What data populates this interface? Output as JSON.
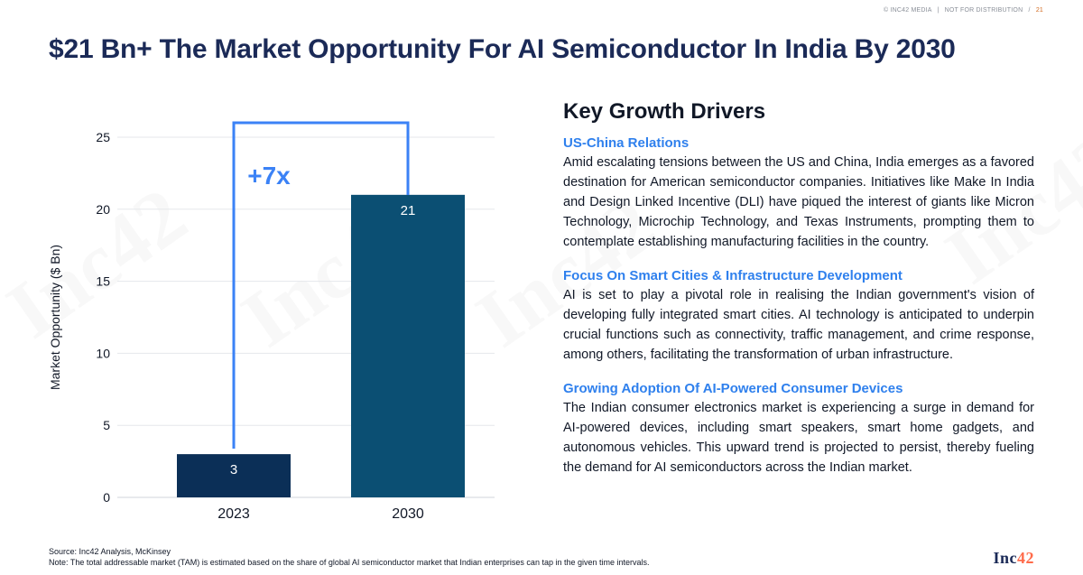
{
  "header": {
    "copyright": "© INC42 MEDIA",
    "distribution": "NOT FOR DISTRIBUTION",
    "page_number": "21"
  },
  "title": "$21 Bn+ The Market Opportunity For AI Semiconductor In India By 2030",
  "chart_data": {
    "type": "bar",
    "categories": [
      "2023",
      "2030"
    ],
    "values": [
      3,
      21
    ],
    "ylabel": "Market Opportunity ($ Bn)",
    "ylim": [
      0,
      25
    ],
    "yticks": [
      0,
      5,
      10,
      15,
      20,
      25
    ],
    "annotation": "+7x",
    "colors": {
      "bar_2023": "#0b2f57",
      "bar_2030": "#0b4f73",
      "annotation": "#3b82f6"
    }
  },
  "drivers": {
    "heading": "Key Growth Drivers",
    "items": [
      {
        "title": "US-China Relations",
        "text": "Amid escalating tensions between the US and China, India emerges as a favored destination for American semiconductor companies. Initiatives like Make In India and Design Linked Incentive (DLI) have piqued the interest of giants like Micron Technology, Microchip Technology, and Texas Instruments, prompting them to contemplate establishing manufacturing facilities in the country."
      },
      {
        "title": "Focus On Smart Cities & Infrastructure Development",
        "text": "AI is set to play a pivotal role in realising the Indian government's vision of developing fully integrated smart cities. AI technology is anticipated to underpin crucial functions such as connectivity, traffic management, and crime response, among others, facilitating the transformation of urban infrastructure."
      },
      {
        "title": "Growing Adoption Of AI-Powered Consumer Devices",
        "text": "The Indian consumer electronics market is experiencing a surge in demand for AI-powered devices, including smart speakers, smart home gadgets, and autonomous vehicles. This upward trend is projected to persist, thereby fueling the demand for AI semiconductors across the Indian market."
      }
    ]
  },
  "footer": {
    "source": "Source: Inc42 Analysis, McKinsey",
    "note": "Note: The total addressable market (TAM) is estimated based on the share of global AI semiconductor market that Indian enterprises can tap in the given time intervals."
  },
  "brand": {
    "name": "Inc",
    "accent": "42"
  },
  "watermark_text": "Inc42"
}
